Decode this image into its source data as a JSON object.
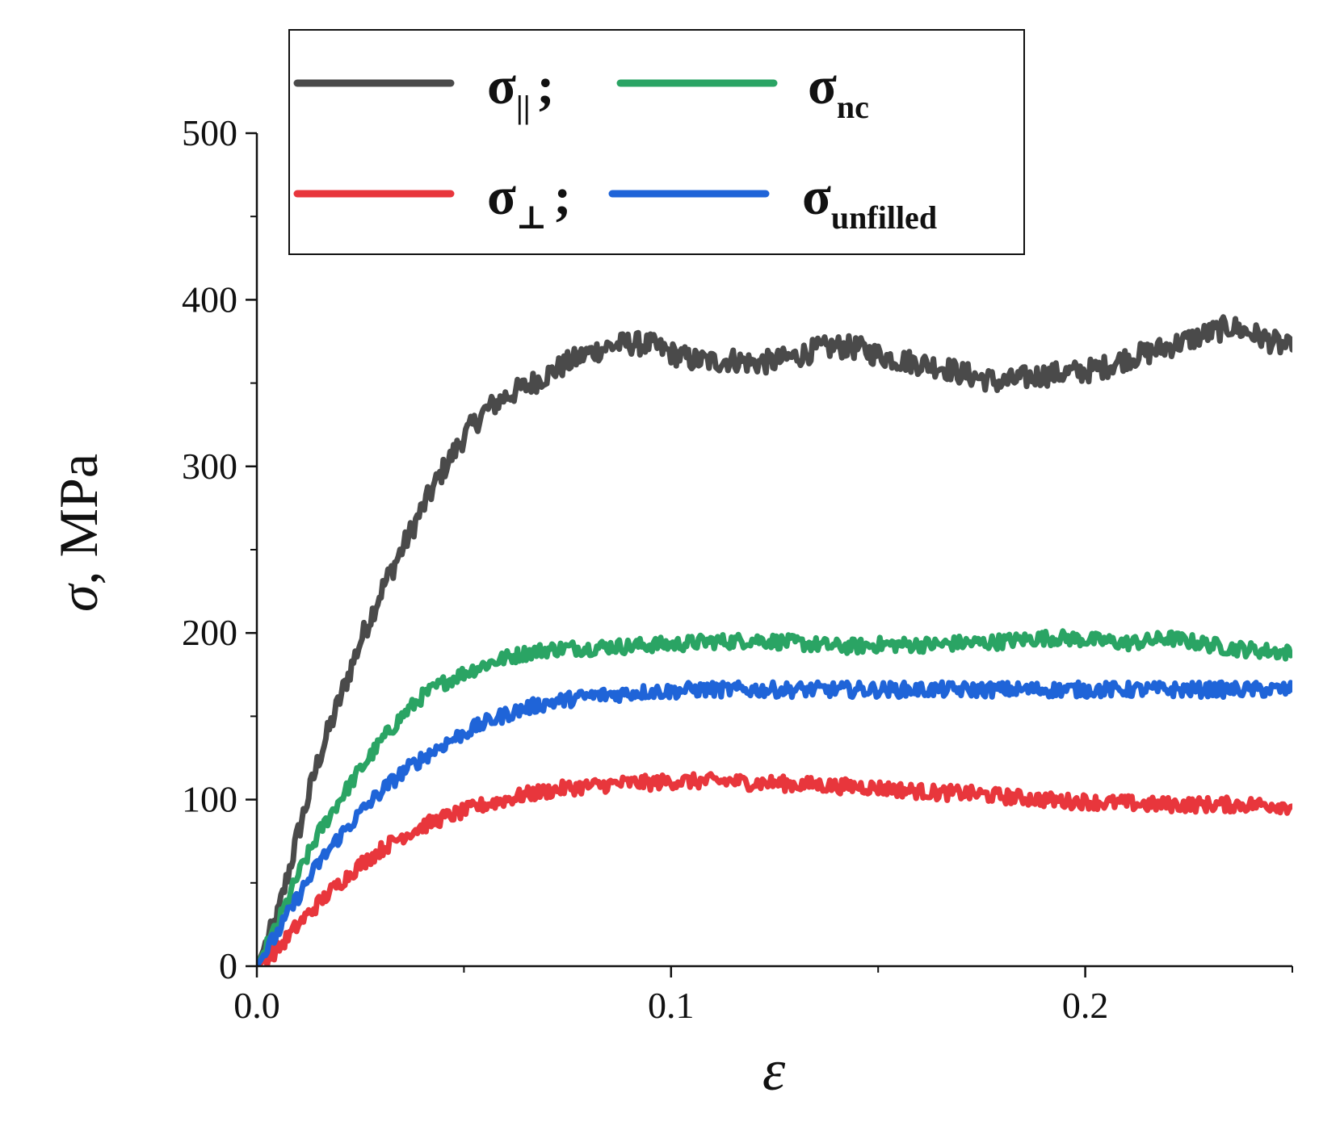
{
  "chart_data": {
    "type": "line",
    "title": "",
    "xlabel": "ε",
    "ylabel": "σ, MPa",
    "xlim": [
      0,
      0.25
    ],
    "ylim": [
      0,
      500
    ],
    "xticks": [
      {
        "value": 0.0,
        "label": "0.0"
      },
      {
        "value": 0.1,
        "label": "0.1"
      },
      {
        "value": 0.2,
        "label": "0.2"
      }
    ],
    "yticks": [
      {
        "value": 0,
        "label": "0"
      },
      {
        "value": 100,
        "label": "100"
      },
      {
        "value": 200,
        "label": "200"
      },
      {
        "value": 300,
        "label": "300"
      },
      {
        "value": 400,
        "label": "400"
      },
      {
        "value": 500,
        "label": "500"
      }
    ],
    "legend_position": "top",
    "series": [
      {
        "name": "σ∥",
        "symbol": "σ",
        "subscript": "||",
        "suffix": ";",
        "color": "#4a4a4a",
        "points": [
          [
            0,
            0
          ],
          [
            0.005,
            30
          ],
          [
            0.01,
            80
          ],
          [
            0.015,
            125
          ],
          [
            0.02,
            160
          ],
          [
            0.025,
            195
          ],
          [
            0.03,
            225
          ],
          [
            0.035,
            250
          ],
          [
            0.04,
            275
          ],
          [
            0.045,
            298
          ],
          [
            0.05,
            318
          ],
          [
            0.055,
            333
          ],
          [
            0.06,
            342
          ],
          [
            0.065,
            348
          ],
          [
            0.07,
            355
          ],
          [
            0.075,
            362
          ],
          [
            0.08,
            368
          ],
          [
            0.085,
            372
          ],
          [
            0.09,
            374
          ],
          [
            0.095,
            373
          ],
          [
            0.1,
            368
          ],
          [
            0.105,
            364
          ],
          [
            0.11,
            363
          ],
          [
            0.115,
            364
          ],
          [
            0.12,
            362
          ],
          [
            0.125,
            363
          ],
          [
            0.13,
            366
          ],
          [
            0.135,
            370
          ],
          [
            0.14,
            372
          ],
          [
            0.145,
            371
          ],
          [
            0.15,
            367
          ],
          [
            0.155,
            364
          ],
          [
            0.16,
            362
          ],
          [
            0.165,
            360
          ],
          [
            0.17,
            356
          ],
          [
            0.175,
            353
          ],
          [
            0.18,
            350
          ],
          [
            0.185,
            353
          ],
          [
            0.19,
            355
          ],
          [
            0.195,
            356
          ],
          [
            0.2,
            357
          ],
          [
            0.205,
            360
          ],
          [
            0.21,
            365
          ],
          [
            0.215,
            368
          ],
          [
            0.22,
            372
          ],
          [
            0.225,
            376
          ],
          [
            0.23,
            380
          ],
          [
            0.235,
            384
          ],
          [
            0.24,
            380
          ],
          [
            0.245,
            375
          ],
          [
            0.25,
            370
          ]
        ]
      },
      {
        "name": "σnc",
        "symbol": "σ",
        "subscript": "nc",
        "suffix": "",
        "color": "#2aa464",
        "points": [
          [
            0,
            0
          ],
          [
            0.005,
            25
          ],
          [
            0.01,
            55
          ],
          [
            0.015,
            80
          ],
          [
            0.02,
            100
          ],
          [
            0.025,
            118
          ],
          [
            0.03,
            135
          ],
          [
            0.035,
            150
          ],
          [
            0.04,
            162
          ],
          [
            0.045,
            170
          ],
          [
            0.05,
            176
          ],
          [
            0.055,
            181
          ],
          [
            0.06,
            185
          ],
          [
            0.065,
            188
          ],
          [
            0.07,
            190
          ],
          [
            0.075,
            191
          ],
          [
            0.08,
            191
          ],
          [
            0.085,
            192
          ],
          [
            0.09,
            192
          ],
          [
            0.095,
            193
          ],
          [
            0.1,
            193
          ],
          [
            0.105,
            194
          ],
          [
            0.11,
            195
          ],
          [
            0.115,
            195
          ],
          [
            0.12,
            196
          ],
          [
            0.125,
            195
          ],
          [
            0.13,
            194
          ],
          [
            0.135,
            193
          ],
          [
            0.14,
            192
          ],
          [
            0.145,
            192
          ],
          [
            0.15,
            193
          ],
          [
            0.155,
            193
          ],
          [
            0.16,
            193
          ],
          [
            0.165,
            193
          ],
          [
            0.17,
            194
          ],
          [
            0.175,
            194
          ],
          [
            0.18,
            195
          ],
          [
            0.185,
            196
          ],
          [
            0.19,
            197
          ],
          [
            0.195,
            197
          ],
          [
            0.2,
            196
          ],
          [
            0.205,
            195
          ],
          [
            0.21,
            194
          ],
          [
            0.215,
            195
          ],
          [
            0.22,
            197
          ],
          [
            0.225,
            195
          ],
          [
            0.23,
            193
          ],
          [
            0.235,
            191
          ],
          [
            0.24,
            190
          ],
          [
            0.245,
            189
          ],
          [
            0.25,
            188
          ]
        ]
      },
      {
        "name": "σ⊥",
        "symbol": "σ",
        "subscript": "⊥",
        "suffix": ";",
        "color": "#e8363c",
        "points": [
          [
            0,
            0
          ],
          [
            0.005,
            10
          ],
          [
            0.01,
            25
          ],
          [
            0.015,
            38
          ],
          [
            0.02,
            50
          ],
          [
            0.025,
            61
          ],
          [
            0.03,
            70
          ],
          [
            0.035,
            78
          ],
          [
            0.04,
            84
          ],
          [
            0.045,
            89
          ],
          [
            0.05,
            93
          ],
          [
            0.055,
            97
          ],
          [
            0.06,
            100
          ],
          [
            0.065,
            103
          ],
          [
            0.07,
            105
          ],
          [
            0.075,
            107
          ],
          [
            0.08,
            108
          ],
          [
            0.085,
            109
          ],
          [
            0.09,
            110
          ],
          [
            0.095,
            110
          ],
          [
            0.1,
            111
          ],
          [
            0.105,
            111
          ],
          [
            0.11,
            111
          ],
          [
            0.115,
            111
          ],
          [
            0.12,
            110
          ],
          [
            0.125,
            110
          ],
          [
            0.13,
            109
          ],
          [
            0.135,
            109
          ],
          [
            0.14,
            108
          ],
          [
            0.145,
            108
          ],
          [
            0.15,
            107
          ],
          [
            0.155,
            106
          ],
          [
            0.16,
            105
          ],
          [
            0.165,
            104
          ],
          [
            0.17,
            104
          ],
          [
            0.175,
            103
          ],
          [
            0.18,
            102
          ],
          [
            0.185,
            101
          ],
          [
            0.19,
            100
          ],
          [
            0.195,
            99
          ],
          [
            0.2,
            99
          ],
          [
            0.205,
            98
          ],
          [
            0.21,
            98
          ],
          [
            0.215,
            97
          ],
          [
            0.22,
            97
          ],
          [
            0.225,
            97
          ],
          [
            0.23,
            97
          ],
          [
            0.235,
            97
          ],
          [
            0.24,
            97
          ],
          [
            0.245,
            97
          ],
          [
            0.25,
            96
          ]
        ]
      },
      {
        "name": "σunfilled",
        "symbol": "σ",
        "subscript": "unfilled",
        "suffix": "",
        "color": "#1f64d8",
        "points": [
          [
            0,
            0
          ],
          [
            0.005,
            20
          ],
          [
            0.01,
            42
          ],
          [
            0.015,
            62
          ],
          [
            0.02,
            78
          ],
          [
            0.025,
            92
          ],
          [
            0.03,
            105
          ],
          [
            0.035,
            116
          ],
          [
            0.04,
            125
          ],
          [
            0.045,
            133
          ],
          [
            0.05,
            140
          ],
          [
            0.055,
            146
          ],
          [
            0.06,
            151
          ],
          [
            0.065,
            155
          ],
          [
            0.07,
            158
          ],
          [
            0.075,
            160
          ],
          [
            0.08,
            162
          ],
          [
            0.085,
            163
          ],
          [
            0.09,
            164
          ],
          [
            0.095,
            165
          ],
          [
            0.1,
            165
          ],
          [
            0.105,
            166
          ],
          [
            0.11,
            166
          ],
          [
            0.115,
            166
          ],
          [
            0.12,
            166
          ],
          [
            0.125,
            166
          ],
          [
            0.13,
            166
          ],
          [
            0.135,
            166
          ],
          [
            0.14,
            166
          ],
          [
            0.145,
            166
          ],
          [
            0.15,
            166
          ],
          [
            0.155,
            166
          ],
          [
            0.16,
            166
          ],
          [
            0.165,
            166
          ],
          [
            0.17,
            166
          ],
          [
            0.175,
            166
          ],
          [
            0.18,
            166
          ],
          [
            0.185,
            166
          ],
          [
            0.19,
            166
          ],
          [
            0.195,
            166
          ],
          [
            0.2,
            166
          ],
          [
            0.205,
            166
          ],
          [
            0.21,
            166
          ],
          [
            0.215,
            166
          ],
          [
            0.22,
            166
          ],
          [
            0.225,
            166
          ],
          [
            0.23,
            166
          ],
          [
            0.235,
            166
          ],
          [
            0.24,
            166
          ],
          [
            0.245,
            166
          ],
          [
            0.25,
            166
          ]
        ]
      }
    ]
  }
}
